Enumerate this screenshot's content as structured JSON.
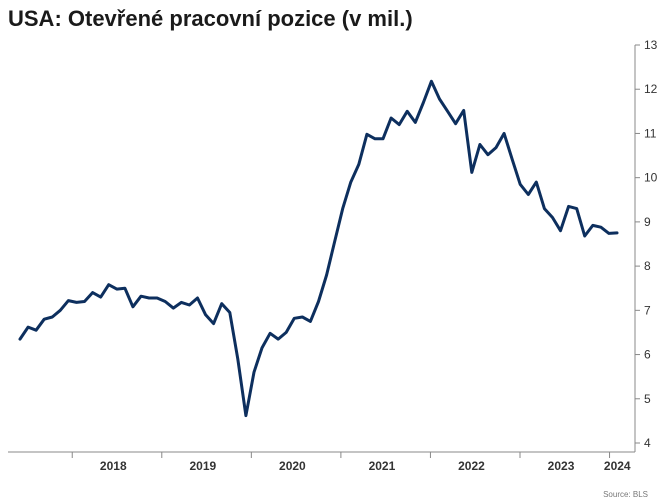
{
  "chart_data": {
    "type": "line",
    "title": "USA: Otevřené pracovní pozice (v mil.)",
    "source": "Source: BLS",
    "xlabel": "",
    "ylabel": "",
    "ylim": [
      4,
      13
    ],
    "yticks": [
      "4",
      "5",
      "6",
      "7",
      "8",
      "9",
      "10",
      "11",
      "12",
      "13"
    ],
    "xticks": [
      "2018",
      "2019",
      "2020",
      "2021",
      "2022",
      "2023",
      "2024"
    ],
    "x_start": "2017-06",
    "x_end": "2024-02",
    "line_color": "#0d2f5e",
    "values": [
      6.35,
      6.62,
      6.55,
      6.8,
      6.85,
      7.0,
      7.22,
      7.18,
      7.2,
      7.4,
      7.3,
      7.58,
      7.48,
      7.5,
      7.08,
      7.32,
      7.28,
      7.28,
      7.2,
      7.05,
      7.18,
      7.12,
      7.28,
      6.9,
      6.7,
      7.15,
      6.95,
      5.9,
      4.62,
      5.6,
      6.15,
      6.48,
      6.35,
      6.5,
      6.82,
      6.85,
      6.75,
      7.2,
      7.8,
      8.55,
      9.3,
      9.9,
      10.3,
      10.98,
      10.88,
      10.88,
      11.35,
      11.2,
      11.5,
      11.25,
      11.7,
      12.18,
      11.78,
      11.5,
      11.22,
      11.52,
      10.12,
      10.75,
      10.52,
      10.68,
      11.0,
      10.42,
      9.85,
      9.62,
      9.9,
      9.3,
      9.1,
      8.8,
      9.35,
      9.3,
      8.68,
      8.92,
      8.88,
      8.74,
      8.75
    ]
  }
}
